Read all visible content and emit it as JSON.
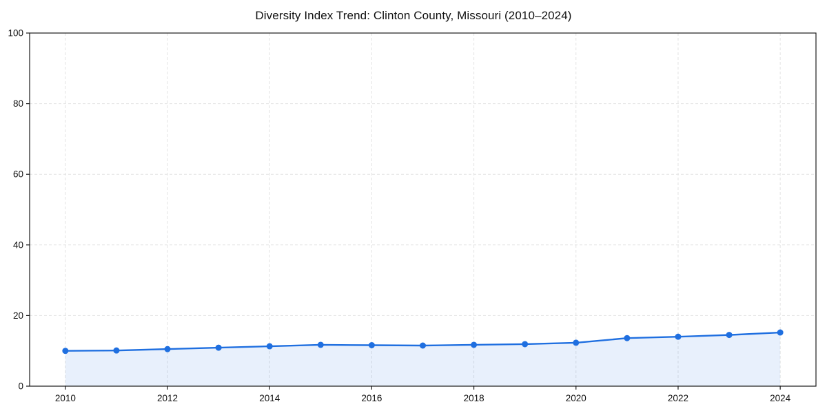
{
  "chart_data": {
    "type": "line",
    "title": "Diversity Index Trend: Clinton County, Missouri (2010–2024)",
    "xlabel": "",
    "ylabel": "",
    "x": [
      2010,
      2011,
      2012,
      2013,
      2014,
      2015,
      2016,
      2017,
      2018,
      2019,
      2020,
      2021,
      2022,
      2023,
      2024
    ],
    "series": [
      {
        "name": "Diversity Index",
        "values": [
          10.0,
          10.1,
          10.5,
          10.9,
          11.3,
          11.7,
          11.6,
          11.5,
          11.7,
          11.9,
          12.3,
          13.6,
          14.0,
          14.5,
          15.2
        ]
      }
    ],
    "ylim": [
      0,
      100
    ],
    "yticks": [
      0,
      20,
      40,
      60,
      80,
      100
    ],
    "xticks": [
      2010,
      2012,
      2014,
      2016,
      2018,
      2020,
      2022,
      2024
    ],
    "grid": "on",
    "grid_style": "dashed",
    "legend": "none",
    "colors": {
      "line": "#1f6fe0",
      "marker": "#1f6fe0",
      "fill": "#1f6fe0",
      "fill_opacity": 0.1,
      "grid": "#e3e3e3",
      "spine": "#1a1a1a",
      "text": "#111111",
      "background": "#ffffff"
    }
  }
}
